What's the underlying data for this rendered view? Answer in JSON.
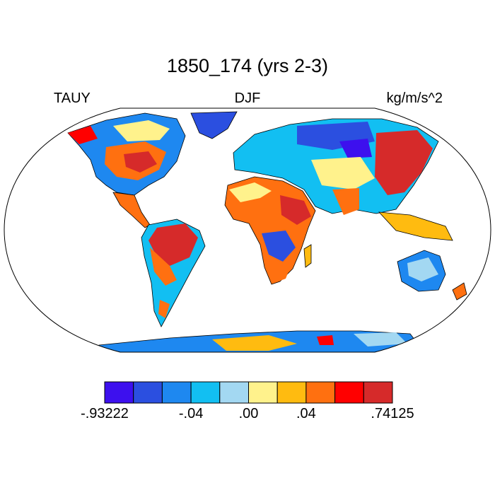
{
  "title": "1850_174 (yrs 2-3)",
  "left_label": "TAUY",
  "center_label": "DJF",
  "right_label": "kg/m/s^2",
  "colorbar": {
    "colors": [
      "#3d10ee",
      "#2b4fe0",
      "#1e88f0",
      "#12bff2",
      "#a3d8f2",
      "#fff28c",
      "#ffbb10",
      "#ff7010",
      "#ff0000",
      "#d62a2a"
    ],
    "labels": [
      {
        "text": "-.93222",
        "boundary": 0
      },
      {
        "text": "-.04",
        "boundary": 3
      },
      {
        "text": ".00",
        "boundary": 5
      },
      {
        "text": ".04",
        "boundary": 7
      },
      {
        "text": ".74125",
        "boundary": 10
      }
    ]
  }
}
